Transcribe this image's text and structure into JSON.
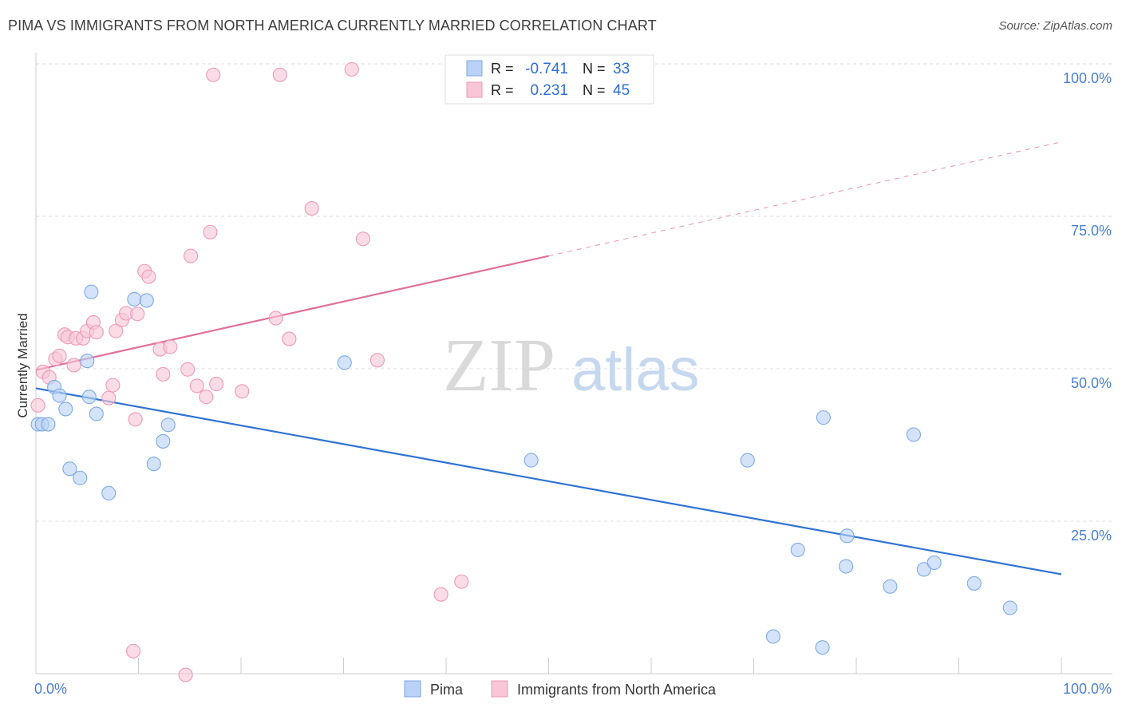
{
  "title": "PIMA VS IMMIGRANTS FROM NORTH AMERICA CURRENTLY MARRIED CORRELATION CHART",
  "source": "Source: ZipAtlas.com",
  "watermark": {
    "zip": "ZIP",
    "atlas": "atlas"
  },
  "colors": {
    "blue_fill": "#b9d2f5",
    "blue_stroke": "#7eaae3",
    "blue_line": "#2f73d2",
    "pink_fill": "#f8c6d6",
    "pink_stroke": "#ec9ab5",
    "pink_line": "#e0709a",
    "tick_text": "#4a7fd0",
    "grid": "#dddddd"
  },
  "legend": {
    "rows": [
      {
        "r_label": "R =",
        "r_value": "-0.741",
        "n_label": "N =",
        "n_value": "33"
      },
      {
        "r_label": "R =",
        "r_value": "0.231",
        "n_label": "N =",
        "n_value": "45"
      }
    ]
  },
  "chart_data": {
    "type": "scatter",
    "xlabel": "",
    "ylabel": "Currently Married",
    "xlim": [
      0,
      100
    ],
    "ylim": [
      0,
      100
    ],
    "x_tick_labels": [
      {
        "value": 0,
        "label": "0.0%"
      },
      {
        "value": 100,
        "label": "100.0%"
      }
    ],
    "y_tick_labels": [
      {
        "value": 25,
        "label": "25.0%"
      },
      {
        "value": 50,
        "label": "50.0%"
      },
      {
        "value": 75,
        "label": "75.0%"
      },
      {
        "value": 100,
        "label": "100.0%"
      }
    ],
    "grid": "horizontal dashed",
    "legend_position": "bottom-center",
    "series": [
      {
        "name": "Pima",
        "color": "#b9d2f5",
        "points": [
          [
            0.2,
            40.9
          ],
          [
            0.6,
            40.9
          ],
          [
            1.2,
            40.9
          ],
          [
            1.8,
            47.0
          ],
          [
            2.3,
            45.6
          ],
          [
            2.9,
            43.4
          ],
          [
            3.3,
            33.6
          ],
          [
            4.3,
            32.1
          ],
          [
            5.0,
            51.3
          ],
          [
            5.2,
            45.4
          ],
          [
            5.9,
            42.6
          ],
          [
            5.4,
            62.6
          ],
          [
            7.1,
            29.6
          ],
          [
            9.6,
            61.4
          ],
          [
            10.8,
            61.2
          ],
          [
            11.5,
            34.4
          ],
          [
            12.4,
            38.1
          ],
          [
            12.9,
            40.8
          ],
          [
            30.1,
            51.0
          ],
          [
            48.3,
            35.0
          ],
          [
            69.4,
            35.0
          ],
          [
            74.3,
            20.3
          ],
          [
            76.8,
            42.0
          ],
          [
            79.1,
            22.6
          ],
          [
            79.0,
            17.6
          ],
          [
            83.3,
            14.3
          ],
          [
            85.6,
            39.2
          ],
          [
            86.6,
            17.1
          ],
          [
            87.6,
            18.2
          ],
          [
            91.5,
            14.8
          ],
          [
            95.0,
            10.8
          ],
          [
            71.9,
            6.1
          ],
          [
            76.7,
            4.3
          ]
        ]
      },
      {
        "name": "Immigrants from North America",
        "color": "#f8c6d6",
        "points": [
          [
            0.2,
            44.0
          ],
          [
            0.7,
            49.5
          ],
          [
            1.3,
            48.6
          ],
          [
            1.9,
            51.6
          ],
          [
            2.3,
            52.1
          ],
          [
            2.8,
            55.6
          ],
          [
            3.1,
            55.2
          ],
          [
            3.7,
            50.6
          ],
          [
            3.9,
            55.0
          ],
          [
            4.6,
            55.0
          ],
          [
            5.0,
            56.2
          ],
          [
            5.6,
            57.6
          ],
          [
            5.9,
            56.0
          ],
          [
            7.1,
            45.2
          ],
          [
            7.5,
            47.3
          ],
          [
            7.8,
            56.2
          ],
          [
            8.4,
            58.0
          ],
          [
            8.8,
            59.1
          ],
          [
            9.7,
            41.7
          ],
          [
            9.9,
            59.0
          ],
          [
            10.6,
            66.0
          ],
          [
            11.0,
            65.1
          ],
          [
            12.1,
            53.2
          ],
          [
            12.4,
            49.1
          ],
          [
            13.1,
            53.6
          ],
          [
            14.8,
            49.9
          ],
          [
            15.1,
            68.5
          ],
          [
            15.7,
            47.2
          ],
          [
            16.6,
            45.4
          ],
          [
            17.0,
            72.4
          ],
          [
            17.6,
            47.5
          ],
          [
            20.1,
            46.3
          ],
          [
            23.4,
            58.3
          ],
          [
            23.8,
            98.2
          ],
          [
            24.7,
            54.9
          ],
          [
            26.9,
            76.3
          ],
          [
            30.8,
            99.1
          ],
          [
            31.9,
            71.3
          ],
          [
            33.3,
            51.4
          ],
          [
            39.5,
            13.0
          ],
          [
            41.5,
            15.1
          ],
          [
            47.4,
            99.1
          ],
          [
            9.5,
            3.7
          ],
          [
            14.6,
            -0.2
          ],
          [
            17.3,
            98.2
          ]
        ]
      }
    ],
    "trend_lines": [
      {
        "series": "Pima",
        "x": [
          0,
          100
        ],
        "y": [
          46.8,
          16.3
        ],
        "style": "solid"
      },
      {
        "series": "Immigrants from North America",
        "x": [
          0,
          50
        ],
        "y": [
          49.8,
          68.5
        ],
        "style": "solid"
      },
      {
        "series": "Immigrants from North America",
        "x": [
          50,
          100
        ],
        "y": [
          68.5,
          87.2
        ],
        "style": "dashed"
      }
    ]
  }
}
